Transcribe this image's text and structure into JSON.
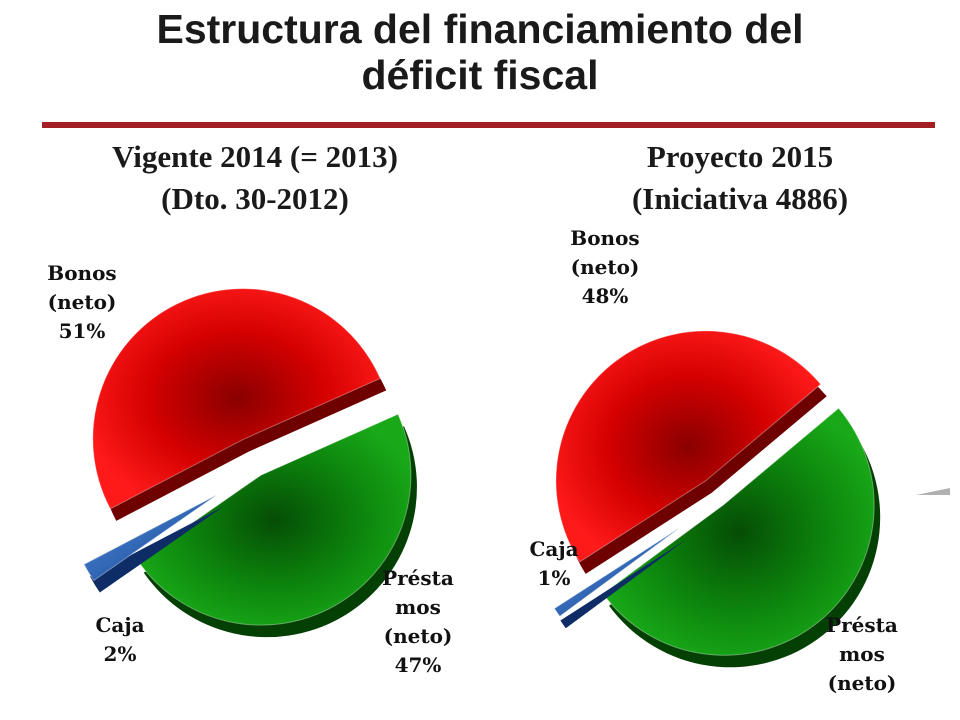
{
  "title": {
    "line1": "Estructura del financiamiento del",
    "line2": "déficit fiscal"
  },
  "chart_data": [
    {
      "type": "pie",
      "subtitle": [
        "Vigente 2014 (= 2013)",
        "(Dto. 30-2012)"
      ],
      "slices": [
        {
          "label": [
            "Bonos",
            "(neto)",
            "51%"
          ],
          "value": 51,
          "color": "#dd0000"
        },
        {
          "label": [
            "Présta",
            "mos",
            "(neto)",
            "47%"
          ],
          "value": 47,
          "color": "#0e8a0e"
        },
        {
          "label": [
            "Caja",
            "2%"
          ],
          "value": 2,
          "color": "#1f5fb5"
        }
      ]
    },
    {
      "type": "pie",
      "subtitle": [
        "Proyecto 2015",
        "(Iniciativa 4886)"
      ],
      "slices": [
        {
          "label": [
            "Bonos",
            "(neto)",
            "48%"
          ],
          "value": 48,
          "color": "#dd0000"
        },
        {
          "label": [
            "Présta",
            "mos",
            "(neto)"
          ],
          "value": 51,
          "color": "#0e8a0e"
        },
        {
          "label": [
            "Caja",
            "1%"
          ],
          "value": 1,
          "color": "#1f5fb5"
        }
      ]
    }
  ]
}
